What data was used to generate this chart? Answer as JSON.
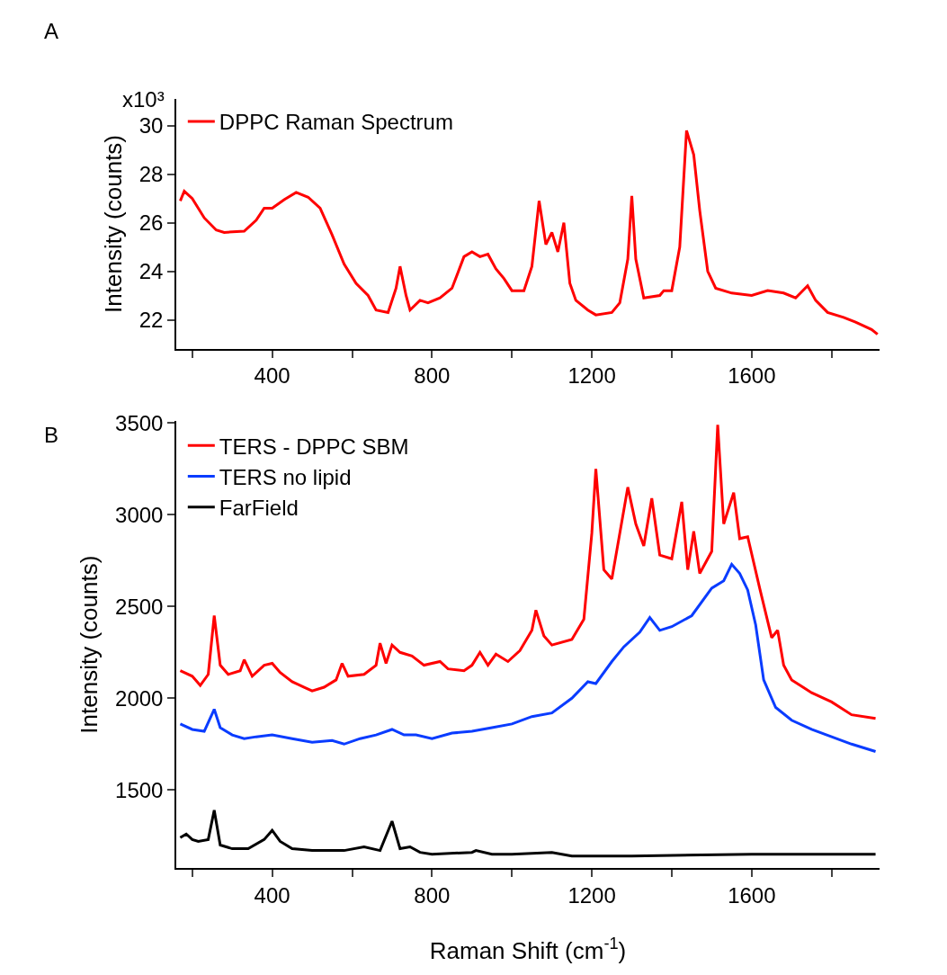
{
  "chart_data": [
    {
      "type": "line",
      "title": "A",
      "ylabel": "Intensity (counts)",
      "legend": "top left",
      "xlim": [
        160,
        1920
      ],
      "xticks": [
        {
          "value": 200,
          "label": null
        },
        400,
        {
          "value": 600,
          "label": null
        },
        800,
        {
          "value": 1000,
          "label": null
        },
        1200,
        {
          "value": 1400,
          "label": null
        },
        1600,
        {
          "value": 1800,
          "label": null
        }
      ],
      "ylim": [
        20.8,
        31.1
      ],
      "yticks": [
        22,
        24,
        26,
        28,
        30
      ],
      "annotations": [
        "x10³"
      ],
      "series": [
        {
          "name": "DPPC Raman Spectrum",
          "color": "#ff0000",
          "x": [
            170,
            180,
            200,
            230,
            260,
            280,
            330,
            360,
            380,
            400,
            430,
            460,
            490,
            520,
            550,
            580,
            610,
            640,
            660,
            690,
            710,
            720,
            735,
            745,
            770,
            790,
            820,
            850,
            880,
            900,
            920,
            940,
            960,
            980,
            1000,
            1030,
            1050,
            1068,
            1085,
            1100,
            1115,
            1130,
            1145,
            1160,
            1190,
            1210,
            1250,
            1270,
            1290,
            1300,
            1310,
            1330,
            1370,
            1380,
            1400,
            1420,
            1437,
            1455,
            1470,
            1490,
            1510,
            1550,
            1600,
            1640,
            1680,
            1710,
            1740,
            1760,
            1790,
            1830,
            1860,
            1900,
            1915
          ],
          "values": [
            26.9,
            27.3,
            27.0,
            26.2,
            25.7,
            25.6,
            25.65,
            26.1,
            26.6,
            26.6,
            26.95,
            27.25,
            27.05,
            26.6,
            25.5,
            24.3,
            23.5,
            23.0,
            22.4,
            22.3,
            23.3,
            24.2,
            23.0,
            22.4,
            22.8,
            22.7,
            22.9,
            23.3,
            24.6,
            24.8,
            24.6,
            24.7,
            24.1,
            23.7,
            23.2,
            23.2,
            24.2,
            26.9,
            25.1,
            25.6,
            24.8,
            26.0,
            23.5,
            22.8,
            22.4,
            22.2,
            22.3,
            22.7,
            24.5,
            27.1,
            24.5,
            22.9,
            23.0,
            23.2,
            23.2,
            25.0,
            29.8,
            28.8,
            26.5,
            24.0,
            23.3,
            23.1,
            23.0,
            23.2,
            23.1,
            22.9,
            23.4,
            22.8,
            22.3,
            22.1,
            21.9,
            21.6,
            21.4
          ]
        }
      ]
    },
    {
      "type": "line",
      "title": "B",
      "xlabel": "Raman Shift (cm$^{-1}$)",
      "ylabel": "Intensity (counts)",
      "legend": "top left",
      "xlim": [
        160,
        1920
      ],
      "xticks": [
        {
          "value": 200,
          "label": null
        },
        400,
        {
          "value": 600,
          "label": null
        },
        800,
        {
          "value": 1000,
          "label": null
        },
        1200,
        {
          "value": 1400,
          "label": null
        },
        1600,
        {
          "value": 1800,
          "label": null
        }
      ],
      "ylim": [
        1075,
        3510
      ],
      "yticks": [
        1500,
        2000,
        2500,
        3000,
        3500
      ],
      "series": [
        {
          "name": "TERS - DPPC SBM",
          "color": "#ff0000",
          "x": [
            170,
            200,
            220,
            240,
            255,
            270,
            290,
            320,
            330,
            350,
            380,
            400,
            420,
            450,
            480,
            500,
            530,
            560,
            575,
            590,
            630,
            660,
            670,
            685,
            700,
            720,
            750,
            780,
            820,
            840,
            880,
            900,
            920,
            940,
            960,
            990,
            1020,
            1050,
            1060,
            1080,
            1100,
            1150,
            1180,
            1200,
            1210,
            1230,
            1250,
            1290,
            1310,
            1330,
            1350,
            1370,
            1400,
            1425,
            1440,
            1455,
            1470,
            1500,
            1515,
            1530,
            1555,
            1570,
            1590,
            1620,
            1650,
            1665,
            1680,
            1700,
            1750,
            1800,
            1850,
            1910
          ],
          "values": [
            2150,
            2120,
            2070,
            2130,
            2450,
            2180,
            2130,
            2150,
            2210,
            2120,
            2180,
            2190,
            2140,
            2090,
            2060,
            2040,
            2060,
            2100,
            2190,
            2120,
            2130,
            2180,
            2300,
            2190,
            2290,
            2250,
            2230,
            2180,
            2200,
            2160,
            2150,
            2180,
            2250,
            2180,
            2240,
            2200,
            2260,
            2370,
            2480,
            2340,
            2290,
            2320,
            2430,
            2900,
            3250,
            2700,
            2650,
            3150,
            2950,
            2830,
            3090,
            2780,
            2760,
            3070,
            2700,
            2910,
            2680,
            2800,
            3490,
            2950,
            3120,
            2870,
            2880,
            2600,
            2330,
            2370,
            2180,
            2100,
            2030,
            1980,
            1910,
            1890
          ]
        },
        {
          "name": "TERS no lipid",
          "color": "#0a3cff",
          "x": [
            170,
            200,
            230,
            255,
            270,
            300,
            330,
            360,
            400,
            450,
            500,
            550,
            580,
            620,
            660,
            700,
            730,
            760,
            800,
            850,
            900,
            950,
            1000,
            1050,
            1100,
            1150,
            1190,
            1210,
            1250,
            1280,
            1320,
            1345,
            1370,
            1400,
            1450,
            1500,
            1530,
            1550,
            1570,
            1590,
            1610,
            1630,
            1660,
            1700,
            1750,
            1800,
            1850,
            1910
          ],
          "values": [
            1860,
            1830,
            1820,
            1940,
            1840,
            1800,
            1780,
            1790,
            1800,
            1780,
            1760,
            1770,
            1750,
            1780,
            1800,
            1830,
            1800,
            1800,
            1780,
            1810,
            1820,
            1840,
            1860,
            1900,
            1920,
            2000,
            2090,
            2080,
            2200,
            2280,
            2360,
            2440,
            2370,
            2390,
            2450,
            2600,
            2640,
            2730,
            2680,
            2590,
            2400,
            2100,
            1950,
            1880,
            1830,
            1790,
            1750,
            1710
          ]
        },
        {
          "name": "FarField",
          "color": "#000000",
          "x": [
            170,
            185,
            200,
            215,
            240,
            255,
            270,
            300,
            340,
            380,
            400,
            420,
            450,
            500,
            580,
            630,
            670,
            700,
            720,
            745,
            770,
            800,
            900,
            910,
            950,
            1000,
            1100,
            1150,
            1300,
            1600,
            1910
          ],
          "values": [
            1240,
            1260,
            1230,
            1220,
            1230,
            1390,
            1200,
            1180,
            1180,
            1230,
            1280,
            1220,
            1180,
            1170,
            1170,
            1190,
            1170,
            1330,
            1180,
            1190,
            1160,
            1150,
            1160,
            1170,
            1150,
            1150,
            1160,
            1140,
            1140,
            1150,
            1150
          ]
        }
      ]
    }
  ]
}
